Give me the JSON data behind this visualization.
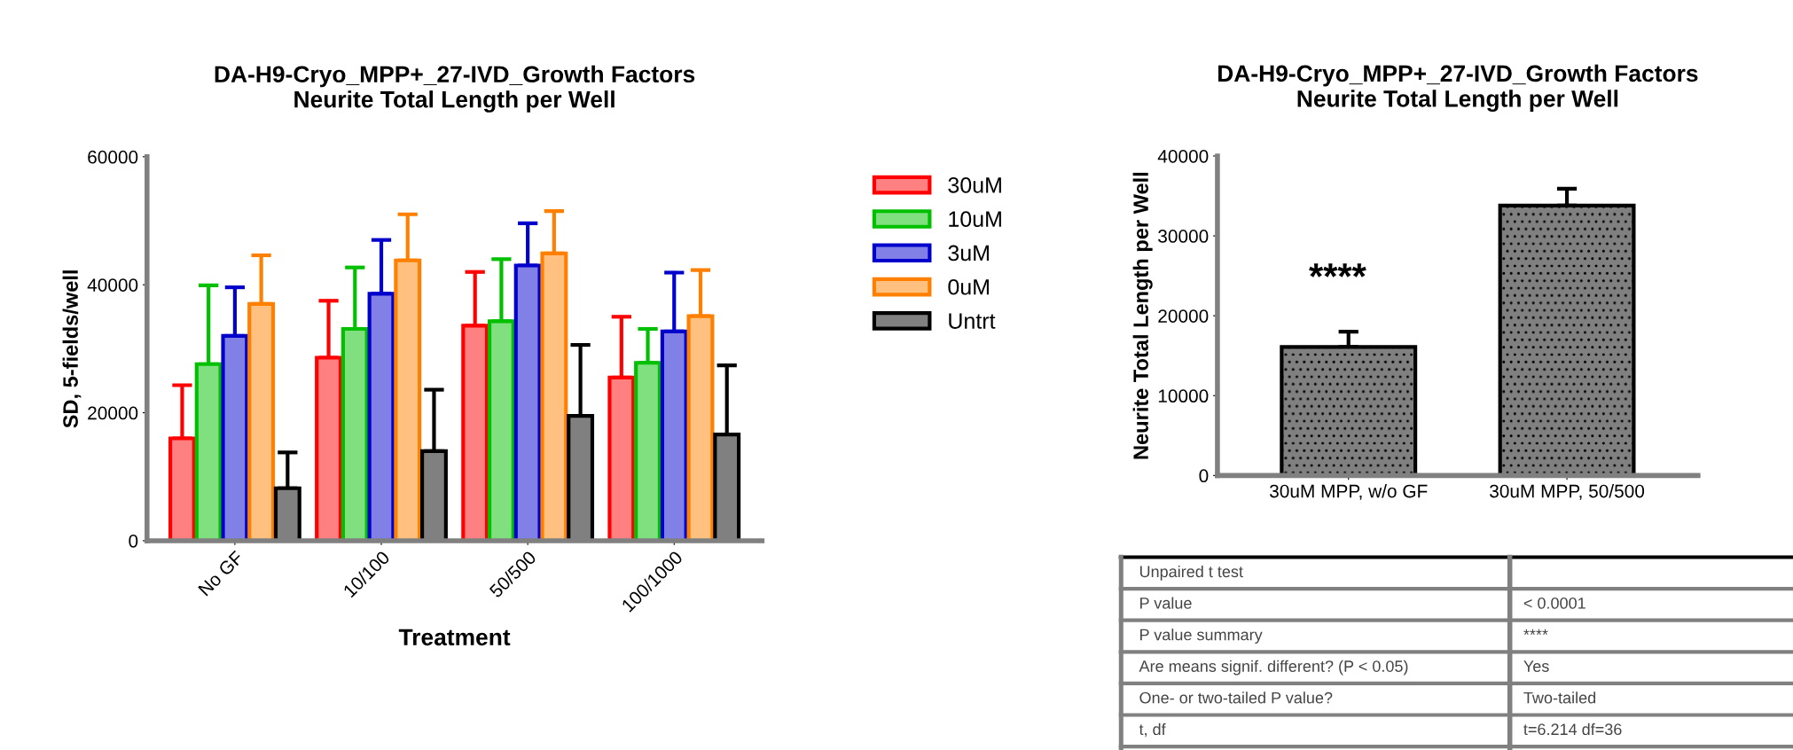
{
  "chart_data": [
    {
      "type": "bar",
      "title": "DA-H9-Cryo_MPP+_27-IVD_Growth Factors\nNeurite Total Length per Well",
      "xlabel": "Treatment",
      "ylabel": "SD, 5-fields/well",
      "categories": [
        "No GF",
        "10/100",
        "50/500",
        "100/1000"
      ],
      "series": [
        {
          "name": "30uM",
          "color": "#ff0000",
          "values": [
            16000,
            28600,
            33600,
            25500
          ],
          "errors": [
            [
              16000,
              24300
            ],
            [
              28600,
              37500
            ],
            [
              33600,
              42000
            ],
            [
              25500,
              35000
            ]
          ]
        },
        {
          "name": "10uM",
          "color": "#00c000",
          "values": [
            27600,
            33100,
            34300,
            27800
          ],
          "errors": [
            [
              27600,
              39900
            ],
            [
              33100,
              42700
            ],
            [
              34300,
              44000
            ],
            [
              27800,
              33100
            ]
          ]
        },
        {
          "name": "3uM",
          "color": "#0000cc",
          "values": [
            32000,
            38600,
            43000,
            32700
          ],
          "errors": [
            [
              32000,
              39600
            ],
            [
              38600,
              47000
            ],
            [
              43000,
              49600
            ],
            [
              32700,
              41900
            ]
          ]
        },
        {
          "name": "0uM",
          "color": "#ff8000",
          "values": [
            37000,
            43800,
            44900,
            35100
          ],
          "errors": [
            [
              37000,
              44600
            ],
            [
              43800,
              51000
            ],
            [
              44900,
              51500
            ],
            [
              35100,
              42300
            ]
          ]
        },
        {
          "name": "Untrt",
          "color": "#000000",
          "values": [
            8200,
            14000,
            19500,
            16600
          ],
          "errors": [
            [
              8200,
              13800
            ],
            [
              14000,
              23600
            ],
            [
              19500,
              30600
            ],
            [
              16600,
              27400
            ]
          ]
        }
      ],
      "ylim": [
        0,
        60000
      ],
      "yticks": [
        0,
        20000,
        40000,
        60000
      ],
      "grid": false,
      "legend": "right"
    },
    {
      "type": "bar",
      "title": "DA-H9-Cryo_MPP+_27-IVD_Growth Factors\nNeurite Total Length per Well",
      "ylabel": "Neurite Total Length per Well",
      "categories": [
        "30uM MPP, w/o GF",
        "30uM MPP, 50/500"
      ],
      "values": [
        16100,
        33800
      ],
      "errors": [
        [
          16100,
          18000
        ],
        [
          33800,
          35900
        ]
      ],
      "color": "#000000",
      "ylim": [
        0,
        40000
      ],
      "yticks": [
        0,
        10000,
        20000,
        30000,
        40000
      ],
      "grid": false,
      "legend": false,
      "annotations": [
        "****"
      ]
    },
    {
      "type": "other",
      "annotations": [
        "Unpaired t test",
        "P value",
        "< 0.0001",
        "P value summary",
        "****",
        "Are means signif. different? (P < 0.05)",
        "Yes",
        "One- or two-tailed P value?",
        "Two-tailed",
        "t, df",
        "t=6.214 df=36"
      ]
    }
  ]
}
